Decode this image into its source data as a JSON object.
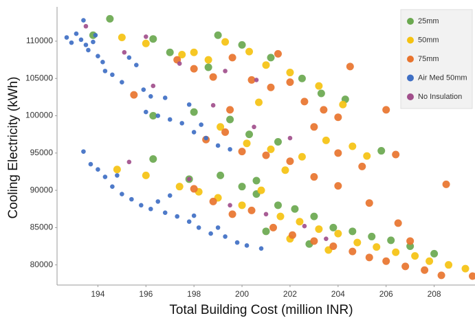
{
  "chart_data": {
    "type": "scatter",
    "x_label": "Total Building Cost (million INR)",
    "y_label": "Cooling Electricity (kWh)",
    "xlim": [
      192.3,
      209.7
    ],
    "xticks": [
      194,
      196,
      198,
      200,
      202,
      204,
      206,
      208,
      210
    ],
    "ylim": [
      77300,
      114600
    ],
    "yticks": [
      80000,
      85000,
      90000,
      95000,
      100000,
      105000,
      110000
    ],
    "grid": false,
    "legend": "top-right",
    "series": [
      {
        "name": "25mm",
        "color": "#6aa84f",
        "x": [
          194.5,
          193.8,
          196.3,
          197.0,
          198.6,
          199.0,
          200.0,
          201.2,
          202.5,
          203.3,
          204.3,
          196.3,
          198.0,
          199.5,
          200.3,
          201.5,
          205.8,
          196.3,
          197.8,
          199.1,
          200.0,
          200.6,
          201.5,
          202.2,
          203.0,
          203.8,
          204.6,
          205.4,
          206.2,
          207.0,
          208.0,
          201.0,
          202.8,
          200.6
        ],
        "values": [
          113000,
          110800,
          110300,
          108500,
          106500,
          110800,
          109500,
          107800,
          105000,
          103000,
          102200,
          100000,
          100500,
          99500,
          97500,
          96500,
          95300,
          94200,
          91500,
          92000,
          90500,
          89500,
          88000,
          87500,
          86500,
          85000,
          84500,
          83800,
          83300,
          82500,
          81500,
          84500,
          82800,
          91300
        ]
      },
      {
        "name": "50mm",
        "color": "#f5c211",
        "x": [
          195.0,
          196.0,
          197.5,
          198.6,
          199.3,
          200.3,
          201.0,
          202.0,
          203.2,
          204.2,
          199.1,
          200.2,
          201.2,
          202.5,
          203.5,
          204.6,
          205.2,
          194.8,
          196.0,
          197.4,
          198.2,
          199.0,
          200.0,
          200.8,
          201.6,
          202.4,
          203.2,
          204.0,
          204.8,
          205.6,
          206.4,
          207.2,
          207.8,
          208.6,
          209.3,
          202.0,
          203.6,
          200.7,
          198.0,
          201.8
        ],
        "values": [
          110500,
          109700,
          108200,
          107500,
          109900,
          108600,
          106800,
          105800,
          104000,
          101500,
          98500,
          96300,
          95500,
          94500,
          96700,
          95900,
          94600,
          92800,
          92000,
          90500,
          89800,
          89000,
          88000,
          90000,
          86500,
          85800,
          84800,
          84200,
          83000,
          82400,
          81700,
          81200,
          80500,
          80000,
          79500,
          83500,
          82000,
          101800,
          108500,
          92700
        ]
      },
      {
        "name": "75mm",
        "color": "#e8742e",
        "x": [
          197.3,
          198.0,
          198.8,
          199.6,
          200.4,
          201.2,
          202.0,
          202.6,
          203.4,
          204.0,
          204.5,
          206.0,
          198.5,
          199.3,
          200.0,
          201.0,
          202.0,
          203.0,
          204.0,
          205.0,
          206.4,
          208.5,
          198.0,
          198.8,
          199.6,
          200.4,
          201.3,
          202.1,
          203.0,
          203.8,
          204.6,
          205.3,
          206.0,
          206.8,
          207.6,
          208.3,
          209.6,
          204.0,
          205.3,
          206.5,
          199.5,
          201.5,
          203.0,
          207.0,
          195.5
        ],
        "values": [
          107500,
          106300,
          105200,
          107800,
          104800,
          103800,
          104500,
          101900,
          100800,
          99800,
          106600,
          100800,
          96800,
          97800,
          95200,
          94700,
          93900,
          98500,
          95000,
          93200,
          94800,
          90800,
          90200,
          88500,
          86800,
          87300,
          85000,
          84000,
          83200,
          82500,
          81800,
          81000,
          80500,
          79800,
          79300,
          78600,
          78500,
          90600,
          88300,
          85600,
          100800,
          108300,
          91800,
          83200,
          102800
        ]
      },
      {
        "name": "Air Med 50mm",
        "color": "#3f6fc4",
        "x": [
          192.7,
          192.9,
          193.1,
          193.3,
          193.5,
          193.6,
          193.8,
          194.0,
          194.2,
          194.3,
          193.4,
          193.9,
          194.6,
          195.0,
          195.3,
          195.6,
          195.9,
          196.2,
          196.0,
          196.5,
          197.0,
          197.5,
          198.0,
          198.5,
          199.0,
          199.5,
          196.8,
          197.8,
          198.3,
          193.4,
          193.7,
          194.0,
          194.3,
          194.6,
          195.0,
          195.4,
          195.8,
          196.2,
          196.8,
          197.3,
          197.8,
          198.2,
          198.7,
          199.3,
          199.8,
          200.2,
          200.8,
          197.0,
          198.0,
          199.0,
          194.8,
          196.5
        ],
        "values": [
          110500,
          109800,
          111000,
          110200,
          109500,
          108800,
          109900,
          108000,
          107200,
          106000,
          112800,
          110800,
          105500,
          104500,
          107800,
          106800,
          103500,
          102600,
          100500,
          100000,
          99500,
          99000,
          97800,
          97000,
          96000,
          95500,
          102400,
          101500,
          98800,
          95200,
          93500,
          92800,
          91800,
          90500,
          89500,
          88800,
          88000,
          87500,
          87000,
          86500,
          85800,
          85000,
          84200,
          83800,
          83000,
          82600,
          82200,
          89300,
          86600,
          85000,
          92000,
          88500
        ]
      },
      {
        "name": "No Insulation",
        "color": "#a14f8c",
        "x": [
          193.5,
          196.0,
          195.1,
          197.4,
          199.3,
          200.6,
          198.8,
          200.5,
          202.0,
          195.3,
          197.8,
          199.5,
          201.0,
          202.6,
          203.5,
          196.3
        ],
        "values": [
          112000,
          110600,
          108500,
          107000,
          106000,
          104800,
          101400,
          98500,
          97000,
          93800,
          91500,
          88000,
          86800,
          85200,
          83500,
          104000
        ]
      }
    ]
  }
}
